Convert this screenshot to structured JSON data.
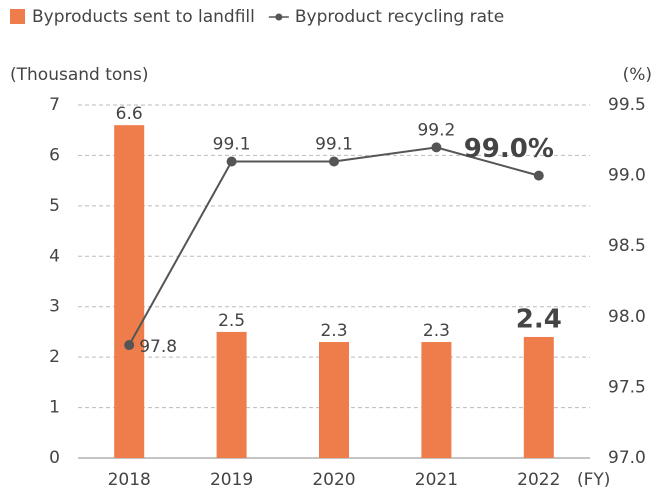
{
  "chart_data": {
    "type": "bar_line",
    "categories": [
      "2018",
      "2019",
      "2020",
      "2021",
      "2022"
    ],
    "series": [
      {
        "name": "Byproducts sent to landfill",
        "type": "bar",
        "color": "#ef7d4b",
        "values": [
          6.6,
          2.5,
          2.3,
          2.3,
          2.4
        ]
      },
      {
        "name": "Byproduct recycling rate",
        "type": "line",
        "axis": "y2",
        "color": "#555555",
        "values": [
          97.8,
          99.1,
          99.1,
          99.2,
          99.0
        ],
        "value_labels": [
          "97.8",
          "99.1",
          "99.1",
          "99.2",
          "99.0%"
        ]
      }
    ],
    "ylabel": "(Thousand tons)",
    "y2label": "(%)",
    "xlabel": "(FY)",
    "ylim": [
      0,
      7
    ],
    "yticks": [
      0,
      1,
      2,
      3,
      4,
      5,
      6,
      7
    ],
    "y2lim": [
      97,
      99.5
    ],
    "y2ticks": [
      {
        "value": 97,
        "label": "97.0"
      },
      {
        "value": 97.5,
        "label": "97.5"
      },
      {
        "value": 98,
        "label": "98.0"
      },
      {
        "value": 98.5,
        "label": "98.5"
      },
      {
        "value": 99,
        "label": "99.0"
      },
      {
        "value": 99.5,
        "label": "99.5"
      }
    ],
    "grid": true,
    "legend": "top-left"
  }
}
